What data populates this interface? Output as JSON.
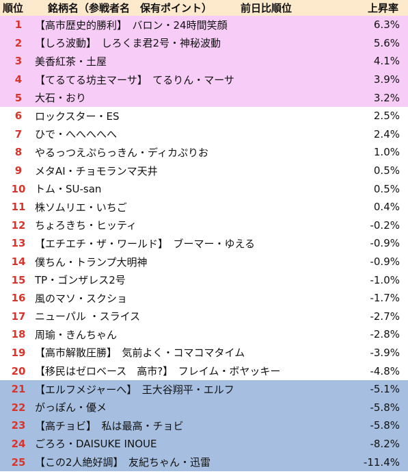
{
  "header": {
    "rank": "順位",
    "name": "銘柄名（参戦者名　保有ポイント）",
    "prev": "前日比順位",
    "rate": "上昇率"
  },
  "colors": {
    "header_bg": "#fde9cc",
    "top_bg": "#f7cdf7",
    "bottom_bg": "#a6bfe0",
    "rank_text": "#d9342b"
  },
  "rows": [
    {
      "rank": "1",
      "name": "【高市歴史的勝利】　バロン・24時間笑顔",
      "rate": "6.3%",
      "group": "top"
    },
    {
      "rank": "2",
      "name": "【しろ波動】　しろくま君2号・神秘波動",
      "rate": "5.6%",
      "group": "top"
    },
    {
      "rank": "3",
      "name": "美香紅茶・土屋",
      "rate": "4.1%",
      "group": "top"
    },
    {
      "rank": "4",
      "name": "【てるてる坊主マーサ】　てるりん・マーサ",
      "rate": "3.9%",
      "group": "top"
    },
    {
      "rank": "5",
      "name": "大石・おり",
      "rate": "3.2%",
      "group": "top"
    },
    {
      "rank": "6",
      "name": "ロックスター・ES",
      "rate": "2.5%",
      "group": "mid"
    },
    {
      "rank": "7",
      "name": "ひで・へへへへへ",
      "rate": "2.4%",
      "group": "mid"
    },
    {
      "rank": "8",
      "name": "やるっつえぷらっきん・ディカぷりお",
      "rate": "1.0%",
      "group": "mid"
    },
    {
      "rank": "9",
      "name": "メタAI・チョモランマ天井",
      "rate": "0.5%",
      "group": "mid"
    },
    {
      "rank": "10",
      "name": "トム・SU-san",
      "rate": "0.5%",
      "group": "mid"
    },
    {
      "rank": "11",
      "name": "株ソムリエ・いちご",
      "rate": "0.4%",
      "group": "mid"
    },
    {
      "rank": "12",
      "name": "ちょろきち・ヒッティ",
      "rate": "-0.2%",
      "group": "mid"
    },
    {
      "rank": "13",
      "name": "【エチエチ・ザ・ワールド】　ブーマー・ゆえる",
      "rate": "-0.9%",
      "group": "mid"
    },
    {
      "rank": "14",
      "name": "僕ちん・トランプ大明神",
      "rate": "-0.9%",
      "group": "mid"
    },
    {
      "rank": "15",
      "name": "TP・ゴンザレス2号",
      "rate": "-1.0%",
      "group": "mid"
    },
    {
      "rank": "16",
      "name": "風のマソ・スクショ",
      "rate": "-1.7%",
      "group": "mid"
    },
    {
      "rank": "17",
      "name": "ニューパル ・スライス",
      "rate": "-2.7%",
      "group": "mid"
    },
    {
      "rank": "18",
      "name": "周瑜・きんちゃん",
      "rate": "-2.8%",
      "group": "mid"
    },
    {
      "rank": "19",
      "name": "【高市解散圧勝】　気前よく・コマコマタイム",
      "rate": "-3.9%",
      "group": "mid"
    },
    {
      "rank": "20",
      "name": "【移民はゼロベース　高市?】　フレイム・ボヤッキー",
      "rate": "-4.8%",
      "group": "mid"
    },
    {
      "rank": "21",
      "name": "【エルフメジャーへ】　王大谷翔平・エルフ",
      "rate": "-5.1%",
      "group": "bot"
    },
    {
      "rank": "22",
      "name": "がっぽん・優メ",
      "rate": "-5.8%",
      "group": "bot"
    },
    {
      "rank": "23",
      "name": "【高チョビ】　私は最高・チョビ",
      "rate": "-5.8%",
      "group": "bot"
    },
    {
      "rank": "24",
      "name": "ごろろ・DAISUKE INOUE",
      "rate": "-8.2%",
      "group": "bot"
    },
    {
      "rank": "25",
      "name": "【この2人絶好調】　友紀ちゃん・迅雷",
      "rate": "-11.4%",
      "group": "bot"
    }
  ]
}
